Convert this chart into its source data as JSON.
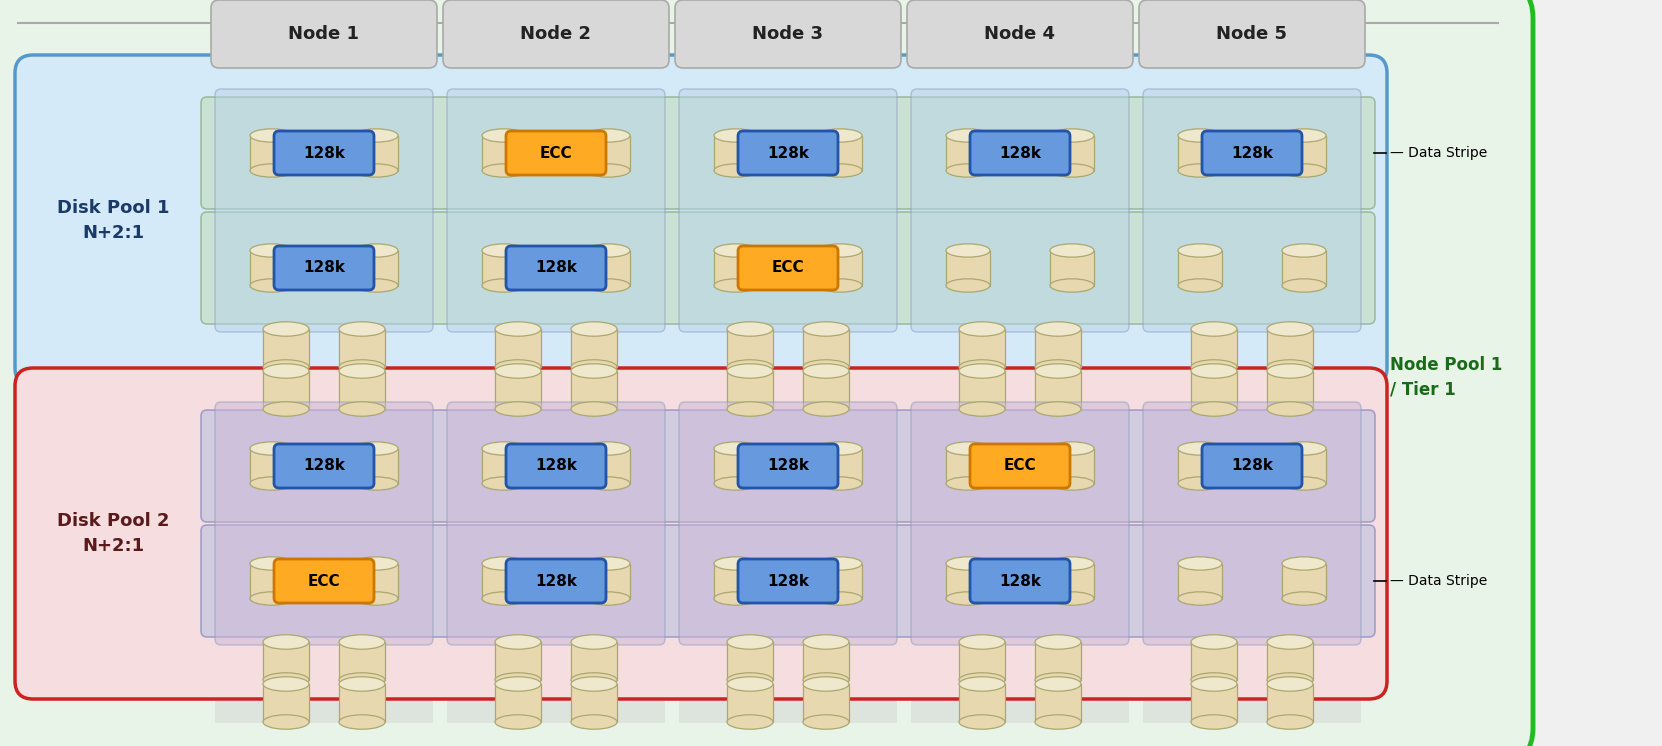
{
  "fig_width": 16.62,
  "fig_height": 7.46,
  "outer_bg": "#e8f4e8",
  "outer_border": "#22bb22",
  "dp1_bg": "#d5eaf8",
  "dp1_border": "#5599cc",
  "dp2_bg": "#f5dde0",
  "dp2_border": "#cc2222",
  "node_col_color": "#cccccc",
  "stripe1_color": "#c5dfc5",
  "stripe1_edge": "#88aa88",
  "stripe2_color": "#c5c5e0",
  "stripe2_edge": "#8888bb",
  "cell1_color": "#b8d4e8",
  "cell2_color": "#c8b8d8",
  "btn_blue": "#6699dd",
  "btn_blue_edge": "#2255aa",
  "btn_orange": "#ffaa22",
  "btn_orange_edge": "#cc7700",
  "disk_fill": "#e8d8b0",
  "disk_top": "#f0e8cc",
  "disk_edge": "#aaa870",
  "node_label_bg": "#d8d8d8",
  "node_label_edge": "#aaaaaa",
  "nodes": [
    "Node 1",
    "Node 2",
    "Node 3",
    "Node 4",
    "Node 5"
  ],
  "dp1_label": "Disk Pool 1\nN+2:1",
  "dp2_label": "Disk Pool 2\nN+2:1",
  "np_label": "Node Pool 1\n/ Tier 1",
  "ds_label": "Data Stripe",
  "pool1_row1": [
    "128k",
    "ECC",
    "128k",
    "128k",
    "128k"
  ],
  "pool1_row2": [
    "128k",
    "128k",
    "ECC",
    "",
    ""
  ],
  "pool2_row1": [
    "128k",
    "128k",
    "128k",
    "ECC",
    "128k"
  ],
  "pool2_row2": [
    "ECC",
    "128k",
    "128k",
    "128k",
    ""
  ]
}
